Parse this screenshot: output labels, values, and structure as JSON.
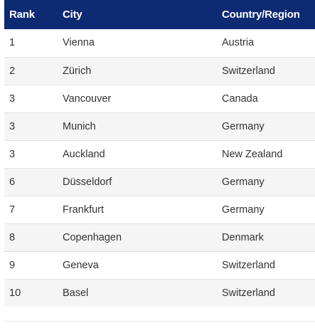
{
  "colors": {
    "header_bg": "#0d2a73",
    "stripe": "#f5f5f5"
  },
  "table": {
    "headers": {
      "rank": "Rank",
      "city": "City",
      "country": "Country/Region"
    },
    "rows": [
      {
        "rank": "1",
        "city": "Vienna",
        "country": "Austria"
      },
      {
        "rank": "2",
        "city": "Zürich",
        "country": "Switzerland"
      },
      {
        "rank": "3",
        "city": "Vancouver",
        "country": "Canada"
      },
      {
        "rank": "3",
        "city": "Munich",
        "country": "Germany"
      },
      {
        "rank": "3",
        "city": "Auckland",
        "country": "New Zealand"
      },
      {
        "rank": "6",
        "city": "Düsseldorf",
        "country": "Germany"
      },
      {
        "rank": "7",
        "city": "Frankfurt",
        "country": "Germany"
      },
      {
        "rank": "8",
        "city": "Copenhagen",
        "country": "Denmark"
      },
      {
        "rank": "9",
        "city": "Geneva",
        "country": "Switzerland"
      },
      {
        "rank": "10",
        "city": "Basel",
        "country": "Switzerland"
      }
    ]
  }
}
